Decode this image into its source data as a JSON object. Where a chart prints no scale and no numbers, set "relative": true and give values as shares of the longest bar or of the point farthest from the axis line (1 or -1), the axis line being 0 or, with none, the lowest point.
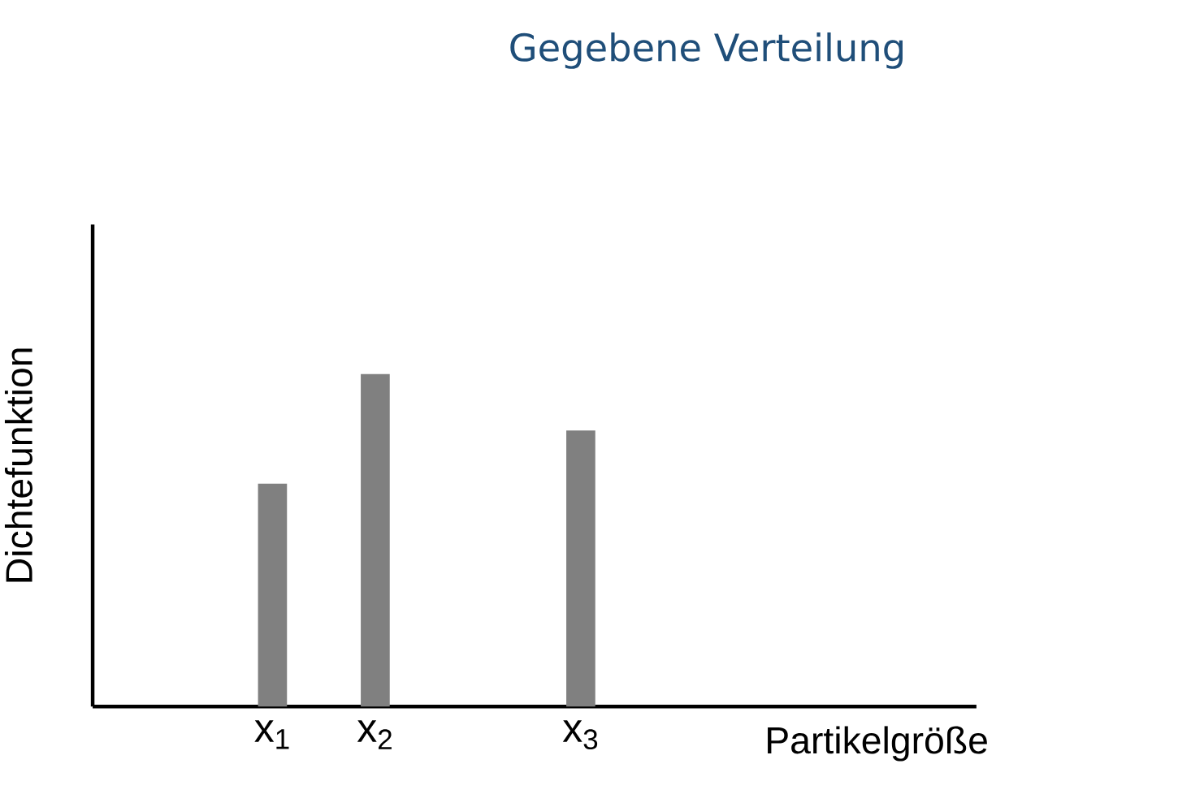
{
  "chart_data": {
    "type": "bar",
    "title": "Gegebene Verteilung",
    "xlabel": "Partikelgröße",
    "ylabel": "Dichtefunktion",
    "categories": [
      "x$_{1}$",
      "x$_{2}$",
      null,
      "x$_{3}$"
    ],
    "values": [
      0.67,
      1,
      null,
      0.83
    ],
    "color": "#808080",
    "relative": true
  }
}
